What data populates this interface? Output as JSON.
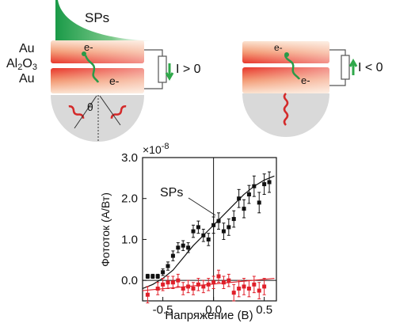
{
  "left_schematic": {
    "sp_label": "SPs",
    "layer_au_top": "Au",
    "layer_oxide_main": "Al",
    "layer_oxide_sub": "2",
    "layer_oxide_tail": "O",
    "layer_oxide_sub2": "3",
    "layer_au_bottom": "Au",
    "electron_top": "e-",
    "electron_bottom": "e-",
    "angle_symbol": "θ",
    "current_label": "I > 0"
  },
  "right_schematic": {
    "electron_top": "e-",
    "electron_bottom": "e-",
    "current_label": "I < 0"
  },
  "colors": {
    "metal_red": "#e8352a",
    "metal_light": "#fde6d2",
    "sp_green": "#1f9e4a",
    "current_arrow": "#2fa84a",
    "prism_gray": "#d9d9d9",
    "series_black": "#111111",
    "series_red": "#e0202a"
  },
  "chart_data": {
    "type": "scatter",
    "xlabel": "Напряжение (В)",
    "ylabel": "Фототок (А/Вт)",
    "y_multiplier": "×10-8",
    "xlim": [
      -0.7,
      0.62
    ],
    "ylim": [
      -0.5,
      3.0
    ],
    "x_ticks": [
      "-0.5",
      "0.0",
      "0.5"
    ],
    "x_tick_values": [
      -0.5,
      0.0,
      0.5
    ],
    "y_ticks": [
      "0.0",
      "1.0",
      "2.0",
      "3.0"
    ],
    "y_tick_values": [
      0.0,
      1.0,
      2.0,
      3.0
    ],
    "annotation": "SPs",
    "series": [
      {
        "color": "#111111",
        "x": [
          -0.65,
          -0.6,
          -0.55,
          -0.5,
          -0.45,
          -0.4,
          -0.35,
          -0.3,
          -0.25,
          -0.2,
          -0.15,
          -0.1,
          -0.05,
          0.0,
          0.05,
          0.1,
          0.15,
          0.2,
          0.25,
          0.3,
          0.35,
          0.4,
          0.45,
          0.5,
          0.55
        ],
        "y": [
          0.1,
          0.1,
          0.1,
          0.2,
          0.35,
          0.6,
          0.8,
          0.85,
          0.8,
          1.2,
          1.3,
          1.1,
          1.0,
          1.35,
          1.45,
          1.2,
          1.3,
          1.5,
          2.0,
          1.75,
          2.1,
          2.3,
          1.9,
          2.35,
          2.4
        ],
        "err": [
          0.05,
          0.05,
          0.05,
          0.08,
          0.1,
          0.12,
          0.12,
          0.12,
          0.12,
          0.15,
          0.15,
          0.15,
          0.15,
          0.2,
          0.2,
          0.2,
          0.2,
          0.2,
          0.22,
          0.22,
          0.22,
          0.25,
          0.25,
          0.25,
          0.25
        ]
      },
      {
        "color": "#e0202a",
        "x": [
          -0.65,
          -0.55,
          -0.5,
          -0.45,
          -0.4,
          -0.35,
          -0.3,
          -0.25,
          -0.2,
          -0.15,
          -0.1,
          -0.05,
          0.0,
          0.05,
          0.1,
          0.15,
          0.2,
          0.25,
          0.3,
          0.35,
          0.4,
          0.45,
          0.5
        ],
        "y": [
          -0.35,
          -0.2,
          -0.1,
          -0.05,
          -0.05,
          0.0,
          -0.2,
          -0.15,
          -0.2,
          -0.1,
          -0.15,
          -0.1,
          -0.05,
          0.1,
          -0.05,
          0.0,
          -0.3,
          -0.2,
          -0.15,
          -0.2,
          -0.1,
          -0.25,
          -0.15
        ],
        "err": [
          0.2,
          0.15,
          0.15,
          0.15,
          0.15,
          0.15,
          0.15,
          0.15,
          0.15,
          0.15,
          0.15,
          0.15,
          0.15,
          0.15,
          0.15,
          0.15,
          0.2,
          0.2,
          0.2,
          0.2,
          0.2,
          0.2,
          0.2
        ]
      }
    ],
    "fit_curves": [
      {
        "color": "#111111",
        "x": [
          -0.7,
          -0.6,
          -0.5,
          -0.4,
          -0.3,
          -0.2,
          -0.1,
          0.0,
          0.1,
          0.2,
          0.3,
          0.4,
          0.5,
          0.6
        ],
        "y": [
          -0.2,
          -0.1,
          0.05,
          0.25,
          0.55,
          0.85,
          1.1,
          1.35,
          1.6,
          1.85,
          2.1,
          2.3,
          2.45,
          2.55
        ]
      },
      {
        "color": "#e0202a",
        "x": [
          -0.7,
          0.6
        ],
        "y": [
          -0.25,
          0.05
        ]
      }
    ]
  }
}
